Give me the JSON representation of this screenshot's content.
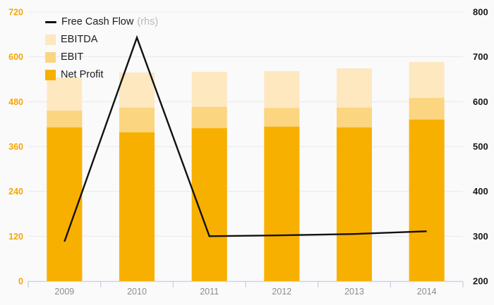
{
  "colors": {
    "background": "#fafafb",
    "grid": "#e7e9ed",
    "axis_line": "#c7cfe2",
    "left_axis_label": "#f5a602",
    "right_axis_label": "#17171a",
    "year_label": "#8c8c8c",
    "line": "#111111",
    "ebitda": "#fde8c0",
    "ebit": "#fbd580",
    "net_profit": "#f8b000"
  },
  "legend": {
    "items": [
      {
        "label": "Free Cash Flow",
        "suffix": "(rhs)",
        "swatch": "line-swatch"
      },
      {
        "label": "EBITDA",
        "swatch": "box-swatch"
      },
      {
        "label": "EBIT",
        "swatch": "box-swatch"
      },
      {
        "label": "Net Profit",
        "swatch": "box-swatch"
      }
    ]
  },
  "chart_data": {
    "type": "combo",
    "subtype": "overlaid bars (EBITDA behind EBIT behind Net Profit) + line on right axis",
    "categories": [
      "2009",
      "2010",
      "2011",
      "2012",
      "2013",
      "2014"
    ],
    "series": [
      {
        "name": "EBITDA",
        "type": "bar",
        "axis": "left",
        "color": "#fde8c0",
        "values": [
          545,
          558,
          560,
          562,
          569,
          586
        ]
      },
      {
        "name": "EBIT",
        "type": "bar",
        "axis": "left",
        "color": "#fbd580",
        "values": [
          456,
          464,
          466,
          463,
          464,
          490
        ]
      },
      {
        "name": "Net Profit",
        "type": "bar",
        "axis": "left",
        "color": "#f8b000",
        "values": [
          411,
          398,
          409,
          413,
          411,
          432
        ]
      },
      {
        "name": "Free Cash Flow",
        "type": "line",
        "axis": "right",
        "color": "#111111",
        "values": [
          288,
          743,
          300,
          302,
          305,
          311
        ]
      }
    ],
    "left_axis": {
      "min": 0,
      "max": 720,
      "step": 120,
      "ticks": [
        0,
        120,
        240,
        360,
        480,
        600,
        720
      ]
    },
    "right_axis": {
      "min": 200,
      "max": 800,
      "step": 100,
      "ticks": [
        200,
        300,
        400,
        500,
        600,
        700,
        800
      ]
    },
    "grid": true,
    "legend_position": "top-left",
    "title": "",
    "xlabel": "",
    "ylabel": ""
  }
}
